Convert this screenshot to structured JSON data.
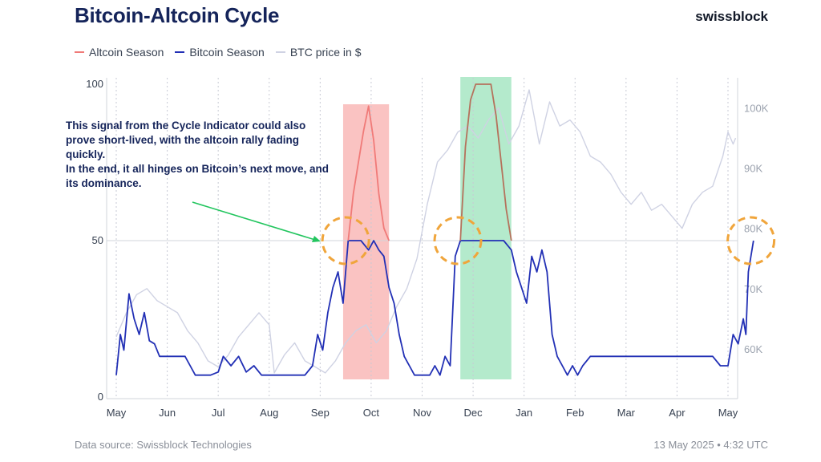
{
  "title": "Bitcoin-Altcoin Cycle",
  "brand": "swissblock",
  "legend": [
    {
      "label": "Altcoin Season",
      "color": "#f07a78"
    },
    {
      "label": "Bitcoin Season",
      "color": "#2230b5"
    },
    {
      "label": "BTC price in $",
      "color": "#cfd2e3"
    }
  ],
  "annotation": {
    "line1": "This signal from the Cycle Indicator could also prove short-lived, with the altcoin rally fading quickly.",
    "line2": "In the end, it all hinges on Bitcoin’s next move, and its dominance."
  },
  "footer": {
    "source": "Data source: Swissblock Technologies",
    "timestamp": "13 May 2025 • 4:32 UTC"
  },
  "chart_data": {
    "type": "line",
    "x_ticks": [
      "May",
      "Jun",
      "Jul",
      "Aug",
      "Sep",
      "Oct",
      "Nov",
      "Dec",
      "Jan",
      "Feb",
      "Mar",
      "Apr",
      "May"
    ],
    "y_left": {
      "range": [
        0,
        100
      ],
      "ticks": [
        "0",
        "50",
        "100"
      ]
    },
    "y_right": {
      "range": [
        50000,
        105000
      ],
      "ticks": [
        "60K",
        "70K",
        "80K",
        "90K",
        "100K"
      ],
      "tick_values": [
        60000,
        70000,
        80000,
        90000,
        100000
      ]
    },
    "highlight_regions": [
      {
        "label": "Altcoin Season",
        "start_month": 4.45,
        "end_month": 5.35,
        "color": "#f9b9b7"
      },
      {
        "label": "Bitcoin Season",
        "start_month": 6.75,
        "end_month": 7.75,
        "color": "#a7e6c3"
      }
    ],
    "circles": [
      {
        "month": 4.5,
        "value": 50
      },
      {
        "month": 6.7,
        "value": 50
      },
      {
        "month": 12.45,
        "value": 50
      }
    ],
    "series": [
      {
        "name": "Bitcoin Season",
        "color": "#2230b5",
        "points": [
          [
            0,
            7
          ],
          [
            0.08,
            20
          ],
          [
            0.15,
            15
          ],
          [
            0.25,
            33
          ],
          [
            0.35,
            25
          ],
          [
            0.45,
            20
          ],
          [
            0.55,
            27
          ],
          [
            0.65,
            18
          ],
          [
            0.75,
            17
          ],
          [
            0.85,
            13
          ],
          [
            0.95,
            13
          ],
          [
            1.05,
            13
          ],
          [
            1.15,
            13
          ],
          [
            1.25,
            13
          ],
          [
            1.35,
            13
          ],
          [
            1.45,
            10
          ],
          [
            1.55,
            7
          ],
          [
            1.7,
            7
          ],
          [
            1.85,
            7
          ],
          [
            2.0,
            8
          ],
          [
            2.1,
            13
          ],
          [
            2.25,
            10
          ],
          [
            2.4,
            13
          ],
          [
            2.55,
            8
          ],
          [
            2.7,
            10
          ],
          [
            2.85,
            7
          ],
          [
            3.0,
            7
          ],
          [
            3.15,
            7
          ],
          [
            3.35,
            7
          ],
          [
            3.55,
            7
          ],
          [
            3.7,
            7
          ],
          [
            3.85,
            10
          ],
          [
            3.95,
            20
          ],
          [
            4.05,
            15
          ],
          [
            4.15,
            27
          ],
          [
            4.25,
            35
          ],
          [
            4.35,
            40
          ],
          [
            4.45,
            30
          ],
          [
            4.55,
            50
          ],
          [
            4.65,
            50
          ],
          [
            4.8,
            50
          ],
          [
            4.95,
            47
          ],
          [
            5.05,
            50
          ],
          [
            5.15,
            47
          ],
          [
            5.25,
            45
          ],
          [
            5.35,
            35
          ],
          [
            5.45,
            30
          ],
          [
            5.55,
            20
          ],
          [
            5.65,
            13
          ],
          [
            5.75,
            10
          ],
          [
            5.85,
            7
          ],
          [
            5.95,
            7
          ],
          [
            6.05,
            7
          ],
          [
            6.15,
            7
          ],
          [
            6.25,
            10
          ],
          [
            6.35,
            7
          ],
          [
            6.45,
            13
          ],
          [
            6.55,
            10
          ],
          [
            6.65,
            45
          ],
          [
            6.75,
            50
          ],
          [
            6.85,
            50
          ],
          [
            7.0,
            50
          ],
          [
            7.15,
            50
          ],
          [
            7.3,
            50
          ],
          [
            7.45,
            50
          ],
          [
            7.6,
            50
          ],
          [
            7.75,
            47
          ],
          [
            7.85,
            40
          ],
          [
            7.95,
            35
          ],
          [
            8.05,
            30
          ],
          [
            8.15,
            45
          ],
          [
            8.25,
            40
          ],
          [
            8.35,
            47
          ],
          [
            8.45,
            40
          ],
          [
            8.55,
            20
          ],
          [
            8.65,
            13
          ],
          [
            8.75,
            10
          ],
          [
            8.85,
            7
          ],
          [
            8.95,
            10
          ],
          [
            9.05,
            7
          ],
          [
            9.15,
            10
          ],
          [
            9.3,
            13
          ],
          [
            9.5,
            13
          ],
          [
            9.7,
            13
          ],
          [
            9.9,
            13
          ],
          [
            10.1,
            13
          ],
          [
            10.3,
            13
          ],
          [
            10.5,
            13
          ],
          [
            10.7,
            13
          ],
          [
            10.9,
            13
          ],
          [
            11.1,
            13
          ],
          [
            11.3,
            13
          ],
          [
            11.5,
            13
          ],
          [
            11.7,
            13
          ],
          [
            11.85,
            10
          ],
          [
            12.0,
            10
          ],
          [
            12.1,
            20
          ],
          [
            12.2,
            17
          ],
          [
            12.3,
            25
          ],
          [
            12.35,
            20
          ],
          [
            12.4,
            40
          ],
          [
            12.5,
            50
          ]
        ]
      },
      {
        "name": "Altcoin Season",
        "color": "#f07a78",
        "points": [
          [
            4.55,
            50
          ],
          [
            4.65,
            65
          ],
          [
            4.75,
            75
          ],
          [
            4.85,
            85
          ],
          [
            4.95,
            93
          ],
          [
            5.05,
            82
          ],
          [
            5.15,
            65
          ],
          [
            5.25,
            54
          ],
          [
            5.35,
            50
          ]
        ]
      },
      {
        "name": "Bitcoin Season (top)",
        "color": "#b5725c",
        "points": [
          [
            6.75,
            50
          ],
          [
            6.85,
            80
          ],
          [
            6.95,
            95
          ],
          [
            7.05,
            100
          ],
          [
            7.2,
            100
          ],
          [
            7.35,
            100
          ],
          [
            7.45,
            90
          ],
          [
            7.55,
            75
          ],
          [
            7.65,
            60
          ],
          [
            7.75,
            50
          ]
        ]
      },
      {
        "name": "BTC price in $",
        "color": "#cfd2e3",
        "points": [
          [
            0,
            62000
          ],
          [
            0.2,
            66000
          ],
          [
            0.4,
            69000
          ],
          [
            0.6,
            70000
          ],
          [
            0.8,
            68000
          ],
          [
            1.0,
            67000
          ],
          [
            1.2,
            66000
          ],
          [
            1.4,
            63000
          ],
          [
            1.6,
            61000
          ],
          [
            1.8,
            58000
          ],
          [
            2.0,
            57000
          ],
          [
            2.2,
            59000
          ],
          [
            2.4,
            62000
          ],
          [
            2.6,
            64000
          ],
          [
            2.8,
            66000
          ],
          [
            3.0,
            64000
          ],
          [
            3.1,
            56000
          ],
          [
            3.3,
            59000
          ],
          [
            3.5,
            61000
          ],
          [
            3.7,
            58000
          ],
          [
            3.9,
            57000
          ],
          [
            4.1,
            56000
          ],
          [
            4.3,
            58000
          ],
          [
            4.5,
            61000
          ],
          [
            4.7,
            63000
          ],
          [
            4.9,
            64000
          ],
          [
            5.1,
            61000
          ],
          [
            5.3,
            63000
          ],
          [
            5.5,
            67000
          ],
          [
            5.7,
            70000
          ],
          [
            5.9,
            75000
          ],
          [
            6.1,
            84000
          ],
          [
            6.3,
            91000
          ],
          [
            6.5,
            93000
          ],
          [
            6.7,
            96000
          ],
          [
            6.9,
            97000
          ],
          [
            7.1,
            95000
          ],
          [
            7.3,
            98000
          ],
          [
            7.5,
            100000
          ],
          [
            7.7,
            94000
          ],
          [
            7.9,
            97000
          ],
          [
            8.1,
            103000
          ],
          [
            8.3,
            94000
          ],
          [
            8.5,
            101000
          ],
          [
            8.7,
            97000
          ],
          [
            8.9,
            98000
          ],
          [
            9.1,
            96000
          ],
          [
            9.3,
            92000
          ],
          [
            9.5,
            91000
          ],
          [
            9.7,
            89000
          ],
          [
            9.9,
            86000
          ],
          [
            10.1,
            84000
          ],
          [
            10.3,
            86000
          ],
          [
            10.5,
            83000
          ],
          [
            10.7,
            84000
          ],
          [
            10.9,
            82000
          ],
          [
            11.1,
            80000
          ],
          [
            11.3,
            84000
          ],
          [
            11.5,
            86000
          ],
          [
            11.7,
            87000
          ],
          [
            11.9,
            92000
          ],
          [
            12.0,
            96000
          ],
          [
            12.1,
            94000
          ],
          [
            12.15,
            95000
          ]
        ]
      }
    ]
  }
}
